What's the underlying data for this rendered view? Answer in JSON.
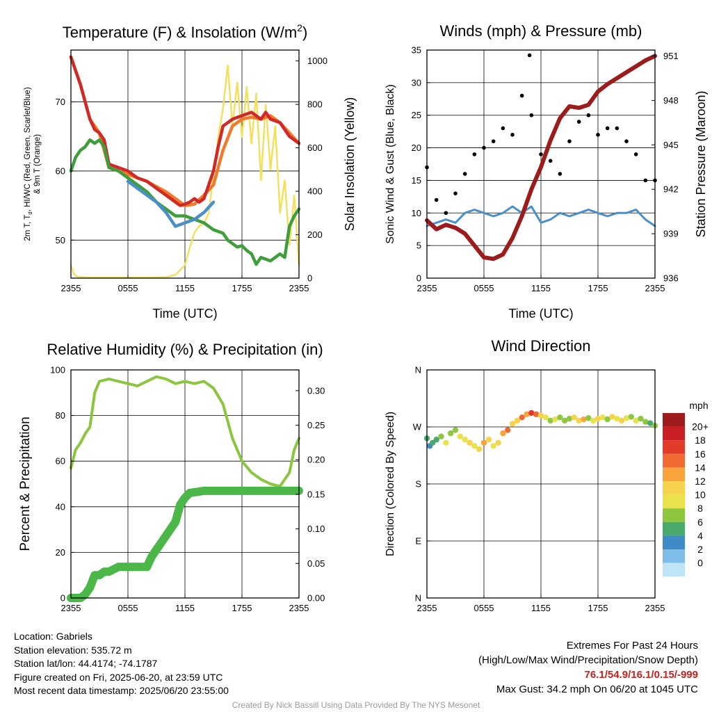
{
  "chart_data": [
    {
      "type": "line",
      "title": "Temperature (F) & Insolation (W/m",
      "title_superscript": "2",
      "title_close": ")",
      "xlabel": "Time (UTC)",
      "ylabel_lines": [
        "2m T, T",
        "d",
        ", HI/WC (Red, Green, Scarlet/Blue)",
        "& 9m T (Orange)"
      ],
      "ylabel_right": "Solar Insolation (Yellow)",
      "x_ticks": [
        "2355",
        "0555",
        "1155",
        "1755",
        "2355"
      ],
      "ylim": [
        44.5,
        77.5
      ],
      "y_ticks": [
        "50",
        "60",
        "70"
      ],
      "y2lim": [
        0,
        1050
      ],
      "y2_ticks": [
        "0",
        "200",
        "400",
        "600",
        "800",
        "1000"
      ],
      "x_unit": "hours after 2355 UTC",
      "series": [
        {
          "name": "Solar Insolation",
          "color": "#f4df5c",
          "axis": "right",
          "x": [
            0,
            0.3,
            0.6,
            1,
            2,
            4,
            6,
            8,
            10,
            11,
            12,
            12.5,
            13,
            13.5,
            14,
            14.5,
            15,
            15.5,
            16,
            16.5,
            17,
            17.5,
            18,
            18.5,
            19,
            19.5,
            20,
            20.5,
            21,
            21.5,
            22,
            22.5,
            23,
            23.5,
            24
          ],
          "y": [
            60,
            20,
            8,
            5,
            3,
            3,
            3,
            3,
            5,
            15,
            60,
            140,
            210,
            240,
            250,
            300,
            480,
            650,
            780,
            980,
            700,
            900,
            650,
            880,
            620,
            850,
            450,
            800,
            500,
            700,
            300,
            450,
            150,
            380,
            60
          ]
        },
        {
          "name": "9m T",
          "color": "#f07a2a",
          "x": [
            0,
            1,
            2,
            3,
            4,
            6,
            8,
            10,
            11,
            12,
            13,
            14,
            15,
            16,
            17,
            18,
            19,
            20,
            21,
            22,
            23,
            24
          ],
          "y": [
            76.5,
            72.5,
            67.5,
            65.5,
            60.5,
            59.5,
            58.5,
            57.0,
            56.0,
            55.0,
            55.2,
            56.5,
            58.0,
            63.0,
            66.5,
            67.5,
            67.8,
            67.5,
            68.0,
            67.0,
            65.5,
            64.0
          ]
        },
        {
          "name": "2m T",
          "color": "#cf2a27",
          "x": [
            0,
            0.5,
            1,
            1.5,
            2,
            2.5,
            3,
            3.5,
            4,
            5,
            6,
            7,
            8,
            9,
            10,
            11,
            11.5,
            12,
            12.5,
            13,
            13.5,
            14,
            14.5,
            15,
            15.5,
            16,
            16.5,
            17,
            18,
            19,
            20,
            20.5,
            21,
            22,
            23,
            24
          ],
          "y": [
            76.5,
            74.5,
            72.5,
            70.0,
            67.5,
            66.0,
            65.5,
            64.5,
            61.0,
            60.5,
            60.0,
            59.0,
            58.5,
            57.5,
            56.5,
            55.5,
            55.0,
            55.2,
            55.5,
            56.0,
            55.5,
            56.0,
            58.0,
            60.0,
            63.5,
            66.5,
            67.0,
            67.5,
            68.0,
            68.5,
            67.5,
            68.5,
            67.5,
            67.0,
            65.0,
            64.0
          ]
        },
        {
          "name": "Dewpoint",
          "color": "#3f9e3b",
          "x": [
            0,
            0.5,
            1,
            1.5,
            2,
            2.5,
            3,
            3.5,
            4,
            5,
            6,
            7,
            8,
            9,
            10,
            11,
            12,
            13,
            14,
            15,
            16,
            16.5,
            17,
            17.5,
            18,
            18.5,
            19,
            19.5,
            20,
            21,
            22,
            22.5,
            23,
            23.5,
            24
          ],
          "y": [
            60.0,
            62.0,
            63.0,
            63.5,
            64.5,
            64.0,
            64.5,
            63.5,
            60.5,
            60.0,
            59.0,
            58.0,
            57.0,
            55.5,
            54.5,
            53.5,
            53.5,
            53.0,
            52.5,
            51.5,
            51.0,
            50.0,
            49.5,
            49.0,
            49.2,
            48.5,
            48.0,
            46.5,
            47.5,
            47.0,
            48.0,
            47.5,
            52.0,
            53.5,
            54.5
          ]
        },
        {
          "name": "Heat Index / Wind Chill",
          "color": "#4a90c8",
          "x": [
            6,
            7,
            8,
            9,
            10,
            11,
            12,
            13,
            14,
            15
          ],
          "y": [
            58.5,
            57.5,
            56.5,
            55.5,
            54.0,
            52.0,
            52.5,
            53.0,
            54.0,
            55.5
          ]
        }
      ]
    },
    {
      "type": "line",
      "title": "Winds (mph) & Pressure (mb)",
      "xlabel": "Time (UTC)",
      "ylabel": "Sonic Wind & Gust (Blue, Black)",
      "ylabel_right": "Station Pressure (Maroon)",
      "x_ticks": [
        "2355",
        "0555",
        "1155",
        "1755",
        "2355"
      ],
      "ylim": [
        0,
        35
      ],
      "y_ticks": [
        "0",
        "5",
        "10",
        "15",
        "20",
        "25",
        "30",
        "35"
      ],
      "y2lim": [
        936,
        951.4
      ],
      "y2_ticks": [
        "936",
        "939",
        "942",
        "945",
        "948",
        "951"
      ],
      "series": [
        {
          "name": "Sonic Wind",
          "color": "#4a90c8",
          "x": [
            0,
            1,
            2,
            3,
            4,
            5,
            6,
            7,
            8,
            9,
            10,
            11,
            12,
            13,
            14,
            15,
            16,
            17,
            18,
            19,
            20,
            21,
            22,
            23,
            24
          ],
          "y": [
            8.0,
            8.5,
            9.0,
            8.5,
            10.0,
            10.5,
            10.0,
            9.5,
            10.0,
            11.0,
            10.0,
            11.0,
            8.5,
            9.0,
            10.0,
            9.5,
            10.0,
            10.5,
            10.0,
            9.5,
            10.0,
            10.0,
            10.5,
            9.0,
            8.0
          ]
        },
        {
          "name": "Gust",
          "color": "#000000",
          "style": "dots",
          "x": [
            0,
            1,
            2,
            3,
            4,
            5,
            6,
            7,
            8,
            9,
            10,
            10.8,
            11,
            12,
            13,
            14,
            15,
            16,
            17,
            18,
            19,
            20,
            21,
            22,
            23,
            24
          ],
          "y": [
            17,
            12,
            10,
            13,
            16,
            19,
            20,
            21,
            23,
            22,
            28,
            34.2,
            25,
            19,
            18,
            16,
            21,
            24,
            25,
            22,
            23,
            23,
            21,
            19,
            15,
            15
          ]
        },
        {
          "name": "Station Pressure",
          "color": "#9b1c1c",
          "axis": "right",
          "x": [
            0,
            0.5,
            1,
            2,
            3,
            4,
            5,
            6,
            7,
            8,
            9,
            10,
            11,
            12,
            13,
            14,
            15,
            16,
            17,
            18,
            19,
            20,
            21,
            22,
            23,
            24
          ],
          "y": [
            939.9,
            939.6,
            939.3,
            939.6,
            939.4,
            939.0,
            938.2,
            937.4,
            937.3,
            937.6,
            938.7,
            940.2,
            942.0,
            943.5,
            945.3,
            946.8,
            947.6,
            947.5,
            947.7,
            948.6,
            949.1,
            949.5,
            949.9,
            950.3,
            950.7,
            951.0
          ]
        }
      ]
    },
    {
      "type": "line",
      "title": "Relative Humidity (%) & Precipitation (in)",
      "xlabel": "",
      "ylabel": "Percent & Precipitation",
      "x_ticks": [
        "2355",
        "0555",
        "1155",
        "1755",
        "2355"
      ],
      "ylim": [
        0,
        100
      ],
      "y_ticks": [
        "0",
        "20",
        "40",
        "60",
        "80",
        "100"
      ],
      "y2lim": [
        0,
        0.33
      ],
      "y2_ticks": [
        "0.00",
        "0.05",
        "0.10",
        "0.15",
        "0.20",
        "0.25",
        "0.30"
      ],
      "series": [
        {
          "name": "Relative Humidity",
          "color": "#8cc53f",
          "x": [
            0,
            0.5,
            1,
            1.5,
            2,
            2.5,
            3,
            4,
            5,
            6,
            7,
            8,
            9,
            10,
            11,
            12,
            13,
            14,
            15,
            16,
            17,
            18,
            19,
            20,
            21,
            22,
            23,
            23.5,
            24
          ],
          "y": [
            57,
            65,
            68,
            72,
            75,
            90,
            95,
            96,
            95,
            94,
            93,
            95,
            97,
            96,
            94,
            95,
            94,
            95,
            92,
            85,
            70,
            60,
            55,
            52,
            50,
            49,
            55,
            65,
            70
          ]
        },
        {
          "name": "Precipitation",
          "color": "#4bb748",
          "axis": "right",
          "style": "thick",
          "x": [
            0,
            1,
            1.5,
            2,
            2.5,
            3,
            3.5,
            4,
            5,
            6,
            7,
            8,
            8.5,
            9,
            10,
            11,
            11.5,
            12,
            12.5,
            13,
            14,
            15,
            16,
            17,
            18,
            19,
            20,
            21,
            22,
            23,
            24
          ],
          "y": [
            0,
            0,
            0.005,
            0.015,
            0.033,
            0.033,
            0.038,
            0.038,
            0.045,
            0.045,
            0.045,
            0.045,
            0.06,
            0.07,
            0.09,
            0.11,
            0.135,
            0.145,
            0.152,
            0.153,
            0.155,
            0.155,
            0.155,
            0.155,
            0.155,
            0.155,
            0.155,
            0.155,
            0.155,
            0.155,
            0.155
          ]
        }
      ]
    },
    {
      "type": "scatter",
      "title": "Wind Direction",
      "ylabel": "Direction (Colored By Speed)",
      "x_ticks": [
        "2355",
        "0555",
        "1155",
        "1755",
        "2355"
      ],
      "y_ticks": [
        "N",
        "E",
        "S",
        "W",
        "N"
      ],
      "ylim": [
        0,
        360
      ],
      "colorbar": {
        "title": "mph",
        "labels": [
          "20+",
          "18",
          "16",
          "14",
          "12",
          "10",
          "8",
          "6",
          "4",
          "2",
          "0"
        ],
        "colors": [
          "#9e1b1e",
          "#c81f25",
          "#e23b2a",
          "#f06930",
          "#f8a33b",
          "#f7d24c",
          "#e8e34c",
          "#8dc63f",
          "#4aa96c",
          "#3f8bc5",
          "#7ebde8",
          "#bfe4f8"
        ]
      },
      "x": [
        0,
        0.3,
        0.6,
        1,
        1.5,
        2,
        2.5,
        3,
        3.5,
        4,
        4.5,
        5,
        5.5,
        6,
        6.5,
        7,
        7.5,
        8,
        8.5,
        9,
        9.5,
        10,
        10.5,
        11,
        11.5,
        12,
        12.5,
        13,
        13.5,
        14,
        14.5,
        15,
        15.5,
        16,
        16.5,
        17,
        17.5,
        18,
        18.5,
        19,
        19.5,
        20,
        20.5,
        21,
        21.5,
        22,
        22.5,
        23,
        23.5,
        24
      ],
      "y": [
        252,
        240,
        245,
        250,
        255,
        245,
        260,
        265,
        255,
        250,
        245,
        240,
        235,
        245,
        250,
        240,
        245,
        260,
        265,
        275,
        280,
        285,
        290,
        292,
        290,
        288,
        285,
        280,
        282,
        285,
        280,
        283,
        285,
        280,
        282,
        284,
        280,
        283,
        285,
        282,
        286,
        283,
        280,
        284,
        286,
        280,
        283,
        278,
        276,
        272
      ],
      "speeds": [
        6,
        4,
        6,
        5,
        8,
        9,
        7,
        8,
        9,
        10,
        11,
        10,
        12,
        13,
        11,
        9,
        12,
        14,
        15,
        12,
        11,
        16,
        14,
        17,
        15,
        12,
        10,
        8,
        9,
        7,
        8,
        8,
        12,
        11,
        13,
        8,
        9,
        11,
        10,
        8,
        12,
        9,
        11,
        10,
        8,
        9,
        7,
        8,
        6,
        7
      ]
    }
  ],
  "info": {
    "location": "Location: Gabriels",
    "elevation": "Station elevation: 535.72 m",
    "latlon": "Station lat/lon: 44.4174; -74.1787",
    "created": "Figure created on Fri, 2025-06-20, at 23:59 UTC",
    "recent": "Most recent data timestamp: 2025/06/20 23:55:00"
  },
  "extremes": {
    "title": "Extremes For Past 24 Hours",
    "subtitle": "(High/Low/Max Wind/Precipitation/Snow Depth)",
    "values": "76.1/54.9/16.1/0.15/-999",
    "gust": "Max Gust: 34.2 mph On 06/20 at 1045 UTC"
  },
  "credit": "Created By Nick Bassill Using Data Provided By The NYS Mesonet"
}
